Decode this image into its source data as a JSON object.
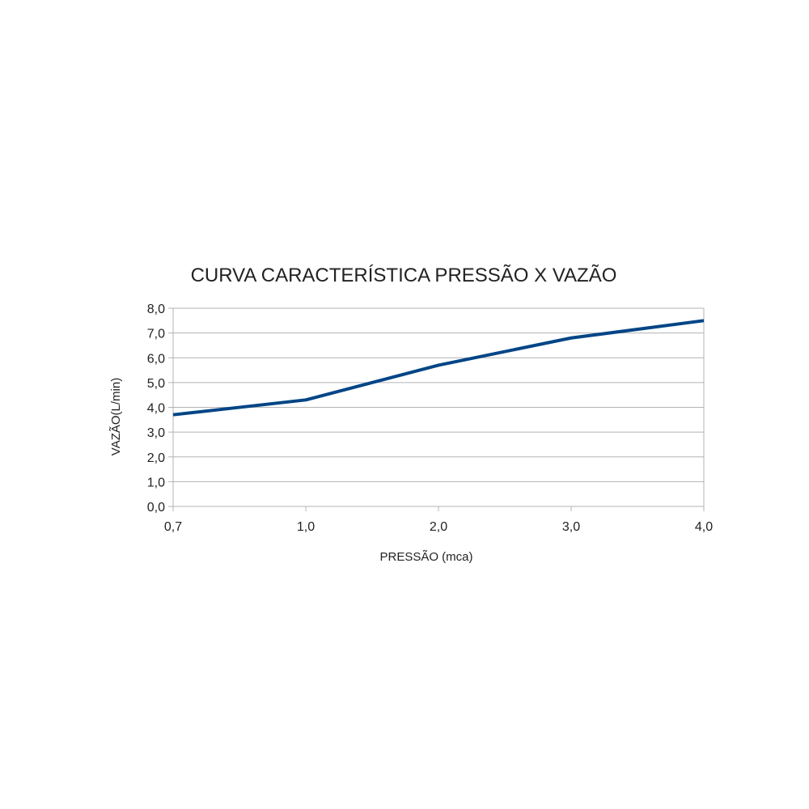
{
  "chart_data": {
    "type": "line",
    "title": "CURVA CARACTERÍSTICA PRESSÃO X VAZÃO",
    "xlabel": "PRESSÃO (mca)",
    "ylabel": "VAZÃO(L/min)",
    "categories": [
      "0,7",
      "1,0",
      "2,0",
      "3,0",
      "4,0"
    ],
    "series": [
      {
        "values": [
          3.7,
          4.3,
          5.7,
          6.8,
          7.5
        ],
        "color": "#004586"
      }
    ],
    "ylim": [
      0,
      8
    ],
    "yticks": [
      "0,0",
      "1,0",
      "2,0",
      "3,0",
      "4,0",
      "5,0",
      "6,0",
      "7,0",
      "8,0"
    ],
    "grid": true,
    "legend": "none"
  }
}
